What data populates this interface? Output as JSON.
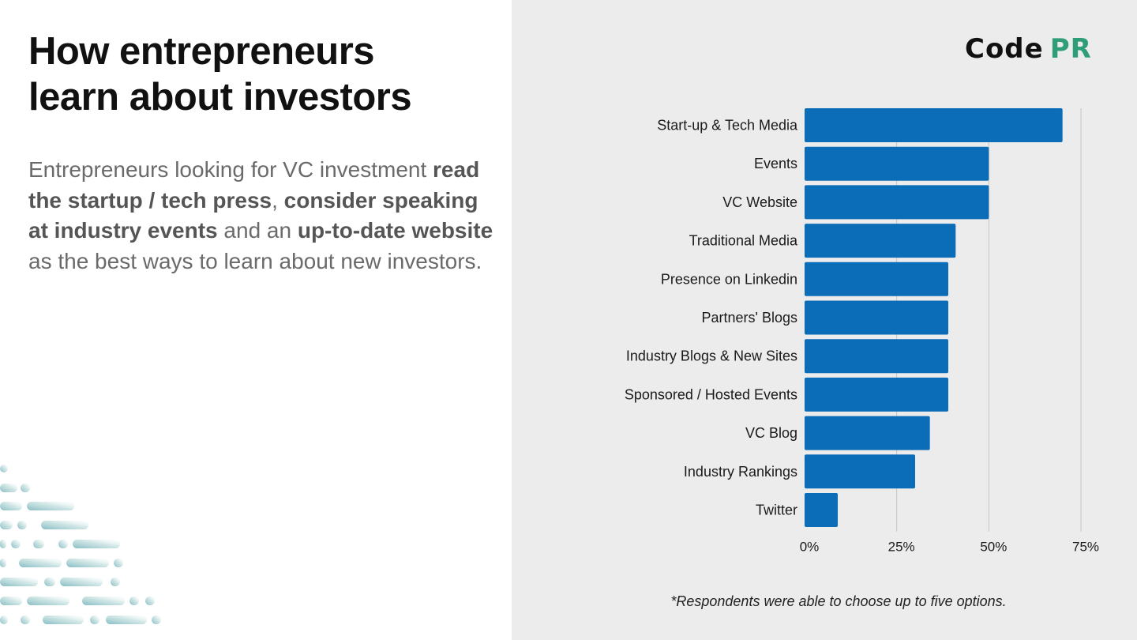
{
  "title_lines": [
    "How entrepreneurs",
    "learn about investors"
  ],
  "description": {
    "part1": "Entrepreneurs looking for VC investment ",
    "bold1": "read the startup / tech press",
    "part2": ", ",
    "bold2": "consider speaking at industry events",
    "part3": " and an ",
    "bold3": "up-to-date website",
    "part4": " as the best ways to learn about new investors."
  },
  "logo": {
    "part1": "Code",
    "part2": "PR"
  },
  "footnote": "*Respondents were able to choose up to five options.",
  "colors": {
    "bar": "#0b6db8",
    "grid": "#c4c4c4",
    "panel": "#ececec",
    "logo_accent": "#2e9d78"
  },
  "chart_data": {
    "type": "bar",
    "orientation": "horizontal",
    "categories": [
      "Start-up & Tech Media",
      "Events",
      "VC Website",
      "Traditional Media",
      "Presence on Linkedin",
      "Partners' Blogs",
      "Industry Blogs & New Sites",
      "Sponsored / Hosted Events",
      "VC Blog",
      "Industry Rankings",
      "Twitter"
    ],
    "values": [
      70,
      50,
      50,
      41,
      39,
      39,
      39,
      39,
      34,
      30,
      9
    ],
    "xlim": [
      0,
      75
    ],
    "xticks": [
      0,
      25,
      50,
      75
    ],
    "xtick_labels": [
      "0%",
      "25%",
      "50%",
      "75%"
    ],
    "grid": true
  }
}
